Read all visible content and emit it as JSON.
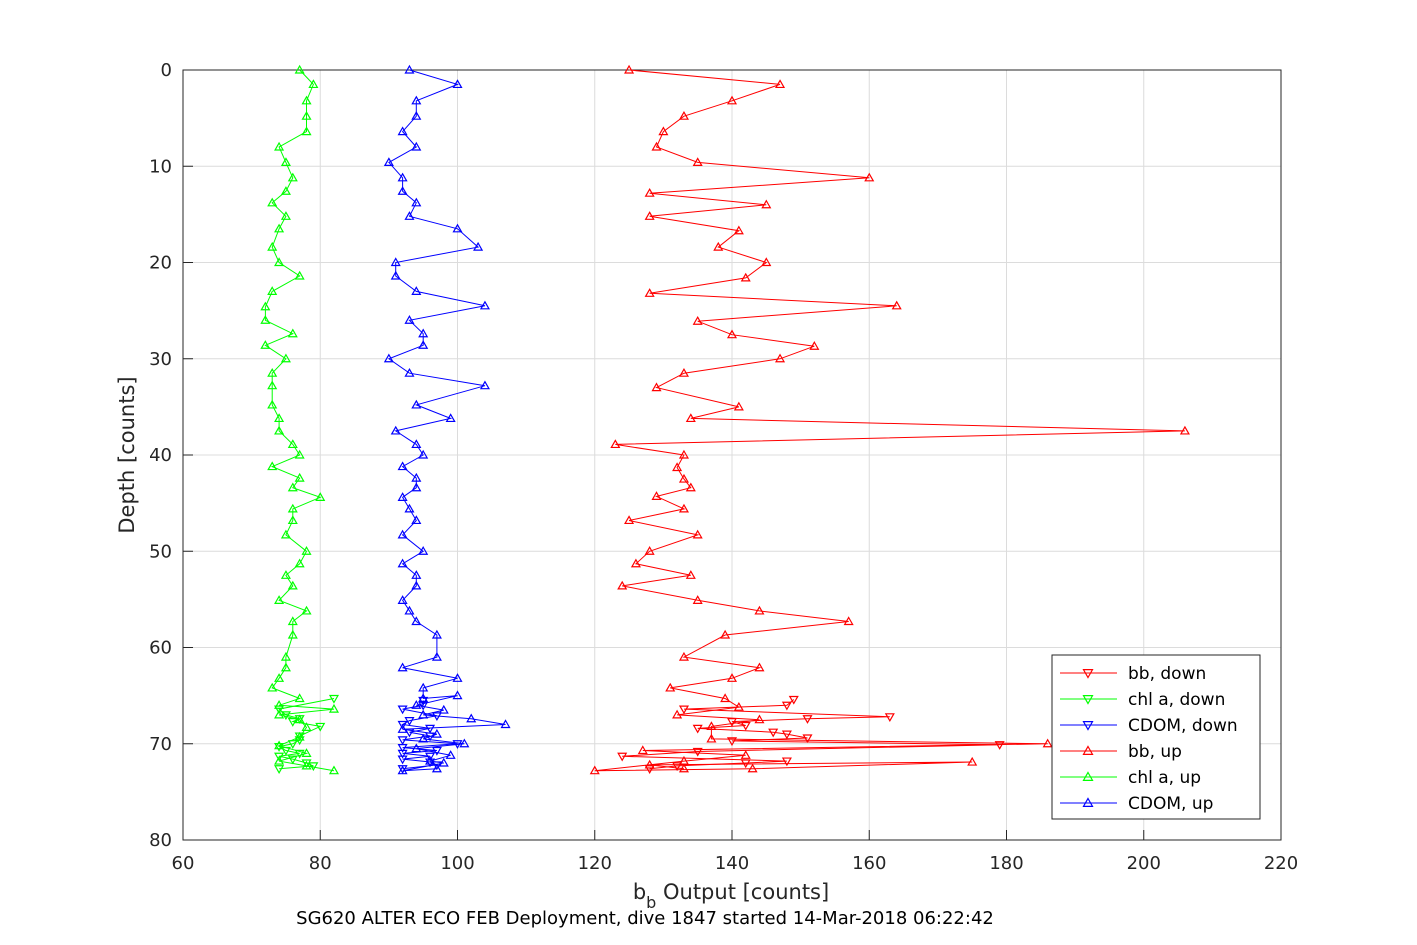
{
  "chart_data": {
    "type": "line",
    "title": "",
    "footer": "SG620 ALTER ECO FEB Deployment, dive 1847 started 14-Mar-2018 06:22:42",
    "xlabel_main": "b",
    "xlabel_sub": "b",
    "xlabel_rest": " Output [counts]",
    "ylabel": "Depth [counts]",
    "xlim": [
      60,
      220
    ],
    "ylim": [
      0,
      80
    ],
    "y_reversed": true,
    "xticks": [
      "60",
      "80",
      "100",
      "120",
      "140",
      "160",
      "180",
      "200",
      "220"
    ],
    "yticks": [
      "0",
      "10",
      "20",
      "30",
      "40",
      "50",
      "60",
      "70",
      "80"
    ],
    "grid": true,
    "legend_position": "bottom-right",
    "series": [
      {
        "name": "bb, down",
        "color": "#ff0000",
        "marker": "triangle-down",
        "points": [
          [
            128,
            72.6
          ],
          [
            132,
            72.3
          ],
          [
            142,
            72.0
          ],
          [
            148,
            71.8
          ],
          [
            124,
            71.3
          ],
          [
            135,
            70.8
          ],
          [
            179,
            70.1
          ],
          [
            140,
            69.7
          ],
          [
            151,
            69.4
          ],
          [
            148,
            69.0
          ],
          [
            146,
            68.8
          ],
          [
            135,
            68.4
          ],
          [
            142,
            68.1
          ],
          [
            140,
            67.7
          ],
          [
            151,
            67.4
          ],
          [
            163,
            67.2
          ],
          [
            133,
            66.4
          ],
          [
            148,
            66.0
          ],
          [
            149,
            65.4
          ]
        ]
      },
      {
        "name": "chl a, down",
        "color": "#00ff00",
        "marker": "triangle-down",
        "points": [
          [
            74,
            72.6
          ],
          [
            79,
            72.3
          ],
          [
            78,
            72.0
          ],
          [
            76,
            71.6
          ],
          [
            74,
            71.3
          ],
          [
            77,
            71.0
          ],
          [
            75,
            70.7
          ],
          [
            74,
            70.3
          ],
          [
            76,
            70.0
          ],
          [
            77,
            69.6
          ],
          [
            77,
            69.2
          ],
          [
            80,
            68.2
          ],
          [
            76,
            67.7
          ],
          [
            77,
            67.4
          ],
          [
            75,
            67.0
          ],
          [
            74,
            66.4
          ],
          [
            82,
            65.3
          ]
        ]
      },
      {
        "name": "CDOM, down",
        "color": "#0000ff",
        "marker": "triangle-down",
        "points": [
          [
            92,
            72.6
          ],
          [
            97,
            72.2
          ],
          [
            96,
            71.9
          ],
          [
            92,
            71.6
          ],
          [
            96,
            71.3
          ],
          [
            92,
            71.0
          ],
          [
            97,
            70.7
          ],
          [
            92,
            70.4
          ],
          [
            100,
            70.0
          ],
          [
            92,
            69.6
          ],
          [
            96,
            69.2
          ],
          [
            93,
            68.8
          ],
          [
            96,
            68.4
          ],
          [
            92,
            68.0
          ],
          [
            93,
            67.6
          ],
          [
            97,
            67.1
          ],
          [
            92,
            66.4
          ],
          [
            95,
            66.0
          ],
          [
            95,
            65.5
          ]
        ]
      },
      {
        "name": "bb, up",
        "color": "#ff0000",
        "marker": "triangle-up",
        "points": [
          [
            125,
            0.0
          ],
          [
            147,
            1.5
          ],
          [
            140,
            3.2
          ],
          [
            133,
            4.8
          ],
          [
            130,
            6.4
          ],
          [
            129,
            8.0
          ],
          [
            135,
            9.6
          ],
          [
            160,
            11.2
          ],
          [
            128,
            12.8
          ],
          [
            145,
            14.0
          ],
          [
            128,
            15.2
          ],
          [
            141,
            16.7
          ],
          [
            138,
            18.4
          ],
          [
            145,
            20.0
          ],
          [
            142,
            21.6
          ],
          [
            128,
            23.2
          ],
          [
            164,
            24.5
          ],
          [
            135,
            26.1
          ],
          [
            140,
            27.5
          ],
          [
            152,
            28.7
          ],
          [
            147,
            30.0
          ],
          [
            133,
            31.5
          ],
          [
            129,
            33.0
          ],
          [
            141,
            35.0
          ],
          [
            134,
            36.2
          ],
          [
            206,
            37.5
          ],
          [
            123,
            38.9
          ],
          [
            133,
            40.0
          ],
          [
            132,
            41.3
          ],
          [
            133,
            42.5
          ],
          [
            134,
            43.4
          ],
          [
            129,
            44.3
          ],
          [
            133,
            45.6
          ],
          [
            125,
            46.8
          ],
          [
            135,
            48.3
          ],
          [
            128,
            50.0
          ],
          [
            126,
            51.3
          ],
          [
            134,
            52.5
          ],
          [
            124,
            53.6
          ],
          [
            135,
            55.1
          ],
          [
            144,
            56.2
          ],
          [
            157,
            57.3
          ],
          [
            139,
            58.7
          ],
          [
            133,
            61.0
          ],
          [
            144,
            62.1
          ],
          [
            140,
            63.2
          ],
          [
            131,
            64.2
          ],
          [
            139,
            65.3
          ],
          [
            141,
            66.2
          ],
          [
            132,
            67.0
          ],
          [
            144,
            67.5
          ],
          [
            137,
            68.2
          ],
          [
            137,
            69.5
          ],
          [
            186,
            70.0
          ],
          [
            127,
            70.7
          ],
          [
            142,
            71.2
          ],
          [
            133,
            71.8
          ],
          [
            120,
            72.8
          ],
          [
            143,
            72.6
          ],
          [
            175,
            71.9
          ],
          [
            128,
            72.2
          ],
          [
            133,
            72.6
          ]
        ]
      },
      {
        "name": "chl a, up",
        "color": "#00ff00",
        "marker": "triangle-up",
        "points": [
          [
            77,
            0.0
          ],
          [
            79,
            1.5
          ],
          [
            78,
            3.2
          ],
          [
            78,
            4.8
          ],
          [
            78,
            6.4
          ],
          [
            74,
            8.0
          ],
          [
            75,
            9.6
          ],
          [
            76,
            11.2
          ],
          [
            75,
            12.6
          ],
          [
            73,
            13.8
          ],
          [
            75,
            15.2
          ],
          [
            74,
            16.5
          ],
          [
            73,
            18.4
          ],
          [
            74,
            20.0
          ],
          [
            77,
            21.4
          ],
          [
            73,
            23.0
          ],
          [
            72,
            24.6
          ],
          [
            72,
            26.0
          ],
          [
            76,
            27.4
          ],
          [
            72,
            28.6
          ],
          [
            75,
            30.0
          ],
          [
            73,
            31.5
          ],
          [
            73,
            32.8
          ],
          [
            73,
            34.8
          ],
          [
            74,
            36.2
          ],
          [
            74,
            37.5
          ],
          [
            76,
            38.9
          ],
          [
            77,
            40.0
          ],
          [
            73,
            41.2
          ],
          [
            77,
            42.4
          ],
          [
            76,
            43.4
          ],
          [
            80,
            44.4
          ],
          [
            76,
            45.6
          ],
          [
            76,
            46.8
          ],
          [
            75,
            48.3
          ],
          [
            78,
            50.0
          ],
          [
            77,
            51.3
          ],
          [
            75,
            52.5
          ],
          [
            76,
            53.6
          ],
          [
            74,
            55.1
          ],
          [
            78,
            56.2
          ],
          [
            76,
            57.3
          ],
          [
            76,
            58.7
          ],
          [
            75,
            61.0
          ],
          [
            75,
            62.1
          ],
          [
            74,
            63.2
          ],
          [
            73,
            64.2
          ],
          [
            77,
            65.3
          ],
          [
            74,
            66.0
          ],
          [
            82,
            66.4
          ],
          [
            74,
            67.0
          ],
          [
            77,
            67.5
          ],
          [
            78,
            68.3
          ],
          [
            77,
            69.3
          ],
          [
            74,
            70.2
          ],
          [
            78,
            71.0
          ],
          [
            74,
            71.8
          ],
          [
            78,
            72.3
          ],
          [
            82,
            72.8
          ]
        ]
      },
      {
        "name": "CDOM, up",
        "color": "#0000ff",
        "marker": "triangle-up",
        "points": [
          [
            93,
            0.0
          ],
          [
            100,
            1.5
          ],
          [
            94,
            3.2
          ],
          [
            94,
            4.8
          ],
          [
            92,
            6.4
          ],
          [
            94,
            8.0
          ],
          [
            90,
            9.6
          ],
          [
            92,
            11.2
          ],
          [
            92,
            12.6
          ],
          [
            94,
            13.8
          ],
          [
            93,
            15.2
          ],
          [
            100,
            16.5
          ],
          [
            103,
            18.4
          ],
          [
            91,
            20.0
          ],
          [
            91,
            21.4
          ],
          [
            94,
            23.0
          ],
          [
            104,
            24.5
          ],
          [
            93,
            26.0
          ],
          [
            95,
            27.4
          ],
          [
            95,
            28.6
          ],
          [
            90,
            30.0
          ],
          [
            93,
            31.5
          ],
          [
            104,
            32.8
          ],
          [
            94,
            34.8
          ],
          [
            99,
            36.2
          ],
          [
            91,
            37.5
          ],
          [
            94,
            38.9
          ],
          [
            95,
            40.0
          ],
          [
            92,
            41.2
          ],
          [
            94,
            42.4
          ],
          [
            94,
            43.4
          ],
          [
            92,
            44.4
          ],
          [
            93,
            45.6
          ],
          [
            94,
            46.8
          ],
          [
            92,
            48.3
          ],
          [
            95,
            50.0
          ],
          [
            92,
            51.3
          ],
          [
            94,
            52.5
          ],
          [
            94,
            53.6
          ],
          [
            92,
            55.1
          ],
          [
            93,
            56.2
          ],
          [
            94,
            57.3
          ],
          [
            97,
            58.7
          ],
          [
            97,
            61.0
          ],
          [
            92,
            62.1
          ],
          [
            100,
            63.2
          ],
          [
            95,
            64.2
          ],
          [
            95,
            65.3
          ],
          [
            100,
            65.0
          ],
          [
            94,
            66.0
          ],
          [
            98,
            66.5
          ],
          [
            95,
            67.0
          ],
          [
            102,
            67.4
          ],
          [
            107,
            68.0
          ],
          [
            92,
            68.5
          ],
          [
            97,
            69.0
          ],
          [
            95,
            69.5
          ],
          [
            101,
            70.0
          ],
          [
            94,
            70.5
          ],
          [
            99,
            71.2
          ],
          [
            96,
            71.8
          ],
          [
            98,
            72.0
          ],
          [
            92,
            72.8
          ],
          [
            97,
            72.6
          ]
        ]
      }
    ],
    "legend_order": [
      {
        "label": "bb, down",
        "color": "#ff0000",
        "marker": "triangle-down"
      },
      {
        "label": "chl a, down",
        "color": "#00ff00",
        "marker": "triangle-down"
      },
      {
        "label": "CDOM, down",
        "color": "#0000ff",
        "marker": "triangle-down"
      },
      {
        "label": "bb, up",
        "color": "#ff0000",
        "marker": "triangle-up"
      },
      {
        "label": "chl a, up",
        "color": "#00ff00",
        "marker": "triangle-up"
      },
      {
        "label": "CDOM, up",
        "color": "#0000ff",
        "marker": "triangle-up"
      }
    ]
  }
}
